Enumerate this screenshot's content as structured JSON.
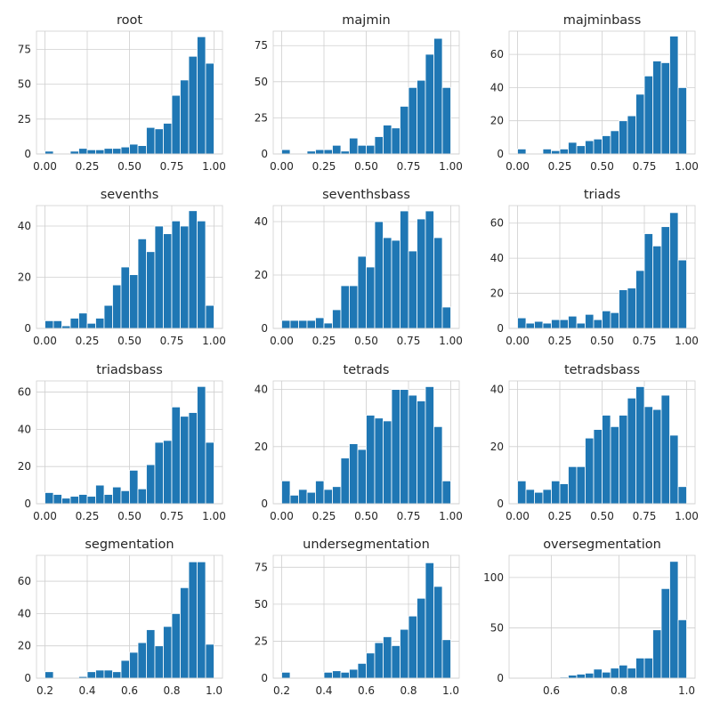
{
  "chart_data": [
    {
      "type": "bar",
      "title": "root",
      "xlim": [
        -0.05,
        1.05
      ],
      "ylim": [
        0,
        88
      ],
      "xticks": [
        0,
        0.25,
        0.5,
        0.75,
        1
      ],
      "xtick_labels": [
        "0.00",
        "0.25",
        "0.50",
        "0.75",
        "1.00"
      ],
      "yticks": [
        0,
        25,
        50,
        75
      ],
      "ytick_labels": [
        "0",
        "25",
        "50",
        "75"
      ],
      "bin_start": 0,
      "bin_width": 0.05,
      "values": [
        2,
        0,
        0,
        2,
        4,
        3,
        3,
        4,
        4,
        5,
        7,
        6,
        19,
        18,
        22,
        42,
        53,
        70,
        84,
        65
      ]
    },
    {
      "type": "bar",
      "title": "majmin",
      "xlim": [
        -0.05,
        1.05
      ],
      "ylim": [
        0,
        85
      ],
      "xticks": [
        0,
        0.25,
        0.5,
        0.75,
        1
      ],
      "xtick_labels": [
        "0.00",
        "0.25",
        "0.50",
        "0.75",
        "1.00"
      ],
      "yticks": [
        0,
        25,
        50,
        75
      ],
      "ytick_labels": [
        "0",
        "25",
        "50",
        "75"
      ],
      "bin_start": 0,
      "bin_width": 0.05,
      "values": [
        3,
        0,
        0,
        2,
        3,
        3,
        6,
        2,
        11,
        6,
        6,
        12,
        20,
        18,
        33,
        46,
        51,
        69,
        80,
        46
      ]
    },
    {
      "type": "bar",
      "title": "majminbass",
      "xlim": [
        -0.05,
        1.05
      ],
      "ylim": [
        0,
        74
      ],
      "xticks": [
        0,
        0.25,
        0.5,
        0.75,
        1
      ],
      "xtick_labels": [
        "0.00",
        "0.25",
        "0.50",
        "0.75",
        "1.00"
      ],
      "yticks": [
        0,
        20,
        40,
        60
      ],
      "ytick_labels": [
        "0",
        "20",
        "40",
        "60"
      ],
      "bin_start": 0,
      "bin_width": 0.05,
      "values": [
        3,
        0,
        0,
        3,
        2,
        3,
        7,
        5,
        8,
        9,
        11,
        14,
        20,
        23,
        36,
        47,
        56,
        55,
        71,
        40
      ]
    },
    {
      "type": "bar",
      "title": "sevenths",
      "xlim": [
        -0.05,
        1.05
      ],
      "ylim": [
        0,
        48
      ],
      "xticks": [
        0,
        0.25,
        0.5,
        0.75,
        1
      ],
      "xtick_labels": [
        "0.00",
        "0.25",
        "0.50",
        "0.75",
        "1.00"
      ],
      "yticks": [
        0,
        20,
        40
      ],
      "ytick_labels": [
        "0",
        "20",
        "40"
      ],
      "bin_start": 0,
      "bin_width": 0.05,
      "values": [
        3,
        3,
        1,
        4,
        6,
        2,
        4,
        9,
        17,
        24,
        21,
        35,
        30,
        40,
        37,
        42,
        40,
        46,
        42,
        9
      ]
    },
    {
      "type": "bar",
      "title": "seventhsbass",
      "xlim": [
        -0.05,
        1.05
      ],
      "ylim": [
        0,
        46
      ],
      "xticks": [
        0,
        0.25,
        0.5,
        0.75,
        1
      ],
      "xtick_labels": [
        "0.00",
        "0.25",
        "0.50",
        "0.75",
        "1.00"
      ],
      "yticks": [
        0,
        20,
        40
      ],
      "ytick_labels": [
        "0",
        "20",
        "40"
      ],
      "bin_start": 0,
      "bin_width": 0.05,
      "values": [
        3,
        3,
        3,
        3,
        4,
        2,
        7,
        16,
        16,
        27,
        23,
        40,
        34,
        33,
        44,
        29,
        41,
        44,
        34,
        8
      ]
    },
    {
      "type": "bar",
      "title": "triads",
      "xlim": [
        -0.05,
        1.05
      ],
      "ylim": [
        0,
        70
      ],
      "xticks": [
        0,
        0.25,
        0.5,
        0.75,
        1
      ],
      "xtick_labels": [
        "0.00",
        "0.25",
        "0.50",
        "0.75",
        "1.00"
      ],
      "yticks": [
        0,
        20,
        40,
        60
      ],
      "ytick_labels": [
        "0",
        "20",
        "40",
        "60"
      ],
      "bin_start": 0,
      "bin_width": 0.05,
      "values": [
        6,
        3,
        4,
        3,
        5,
        5,
        7,
        3,
        8,
        5,
        10,
        9,
        22,
        23,
        33,
        54,
        47,
        58,
        66,
        39
      ]
    },
    {
      "type": "bar",
      "title": "triadsbass",
      "xlim": [
        -0.05,
        1.05
      ],
      "ylim": [
        0,
        66
      ],
      "xticks": [
        0,
        0.25,
        0.5,
        0.75,
        1
      ],
      "xtick_labels": [
        "0.00",
        "0.25",
        "0.50",
        "0.75",
        "1.00"
      ],
      "yticks": [
        0,
        20,
        40,
        60
      ],
      "ytick_labels": [
        "0",
        "20",
        "40",
        "60"
      ],
      "bin_start": 0,
      "bin_width": 0.05,
      "values": [
        6,
        5,
        3,
        4,
        5,
        4,
        10,
        5,
        9,
        7,
        18,
        8,
        21,
        33,
        34,
        52,
        47,
        49,
        63,
        33
      ]
    },
    {
      "type": "bar",
      "title": "tetrads",
      "xlim": [
        -0.05,
        1.05
      ],
      "ylim": [
        0,
        43
      ],
      "xticks": [
        0,
        0.25,
        0.5,
        0.75,
        1
      ],
      "xtick_labels": [
        "0.00",
        "0.25",
        "0.50",
        "0.75",
        "1.00"
      ],
      "yticks": [
        0,
        20,
        40
      ],
      "ytick_labels": [
        "0",
        "20",
        "40"
      ],
      "bin_start": 0,
      "bin_width": 0.05,
      "values": [
        8,
        3,
        5,
        4,
        8,
        5,
        6,
        16,
        21,
        19,
        31,
        30,
        29,
        40,
        40,
        38,
        36,
        41,
        27,
        8
      ]
    },
    {
      "type": "bar",
      "title": "tetradsbass",
      "xlim": [
        -0.05,
        1.05
      ],
      "ylim": [
        0,
        43
      ],
      "xticks": [
        0,
        0.25,
        0.5,
        0.75,
        1
      ],
      "xtick_labels": [
        "0.00",
        "0.25",
        "0.50",
        "0.75",
        "1.00"
      ],
      "yticks": [
        0,
        20,
        40
      ],
      "ytick_labels": [
        "0",
        "20",
        "40"
      ],
      "bin_start": 0,
      "bin_width": 0.05,
      "values": [
        8,
        5,
        4,
        5,
        8,
        7,
        13,
        13,
        23,
        26,
        31,
        27,
        31,
        37,
        41,
        34,
        33,
        38,
        24,
        6
      ]
    },
    {
      "type": "bar",
      "title": "segmentation",
      "xlim": [
        0.16,
        1.04
      ],
      "ylim": [
        0,
        76
      ],
      "xticks": [
        0.2,
        0.4,
        0.6,
        0.8,
        1
      ],
      "xtick_labels": [
        "0.2",
        "0.4",
        "0.6",
        "0.8",
        "1.0"
      ],
      "yticks": [
        0,
        20,
        40,
        60
      ],
      "ytick_labels": [
        "0",
        "20",
        "40",
        "60"
      ],
      "bin_start": 0.2,
      "bin_width": 0.04,
      "values": [
        4,
        0,
        0,
        0,
        1,
        4,
        5,
        5,
        4,
        11,
        16,
        22,
        30,
        20,
        32,
        40,
        56,
        72,
        72,
        21
      ]
    },
    {
      "type": "bar",
      "title": "undersegmentation",
      "xlim": [
        0.16,
        1.04
      ],
      "ylim": [
        0,
        83
      ],
      "xticks": [
        0.2,
        0.4,
        0.6,
        0.8,
        1
      ],
      "xtick_labels": [
        "0.2",
        "0.4",
        "0.6",
        "0.8",
        "1.0"
      ],
      "yticks": [
        0,
        25,
        50,
        75
      ],
      "ytick_labels": [
        "0",
        "25",
        "50",
        "75"
      ],
      "bin_start": 0.2,
      "bin_width": 0.04,
      "values": [
        4,
        0,
        0,
        0,
        0,
        4,
        5,
        4,
        6,
        10,
        17,
        24,
        28,
        22,
        33,
        42,
        54,
        78,
        62,
        26
      ]
    },
    {
      "type": "bar",
      "title": "oversegmentation",
      "xlim": [
        0.475,
        1.025
      ],
      "ylim": [
        0,
        122
      ],
      "xticks": [
        0.6,
        0.8,
        1
      ],
      "xtick_labels": [
        "0.6",
        "0.8",
        "1.0"
      ],
      "yticks": [
        0,
        50,
        100
      ],
      "ytick_labels": [
        "0",
        "50",
        "100"
      ],
      "bin_start": 0.5,
      "bin_width": 0.025,
      "values": [
        0,
        0,
        0,
        0,
        0,
        1,
        3,
        4,
        5,
        9,
        6,
        10,
        13,
        10,
        20,
        20,
        48,
        89,
        116,
        58
      ]
    }
  ]
}
